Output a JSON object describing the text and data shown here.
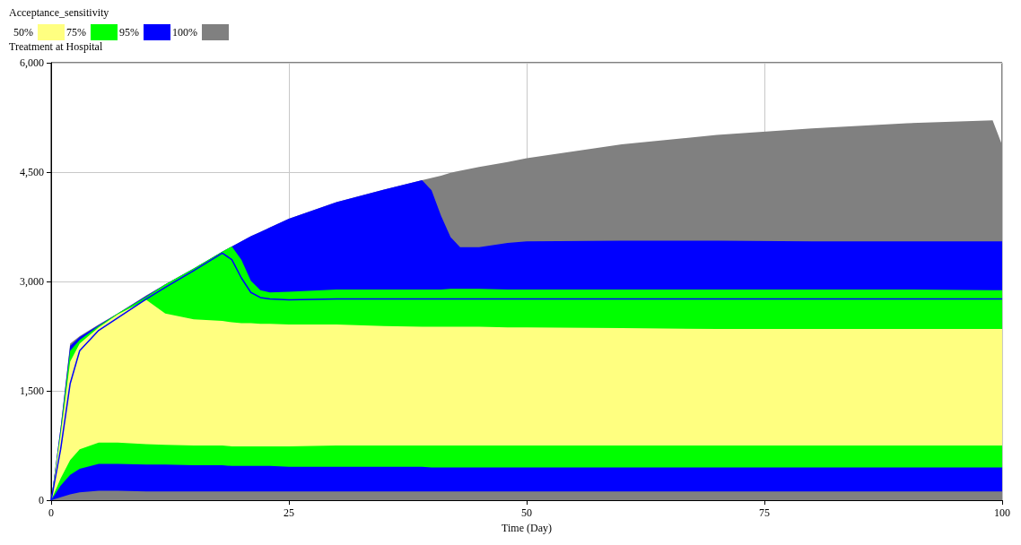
{
  "chart_data": {
    "type": "area",
    "stacked": true,
    "legend_title": "Acceptance_sensitivity",
    "ylabel": "Treatment at Hospital",
    "xlabel": "Time (Day)",
    "legend": "top left",
    "grid": true,
    "xlim": [
      0,
      100
    ],
    "xticks": [
      0,
      25,
      50,
      75,
      100
    ],
    "ylim": [
      0,
      6000
    ],
    "yticks": [
      0,
      {
        "value": 1500,
        "label": "1,500"
      },
      {
        "value": 3000,
        "label": "3,000"
      },
      {
        "value": 4500,
        "label": "4,500"
      },
      {
        "value": 6000,
        "label": "6,000"
      }
    ],
    "x": [
      0,
      1,
      2,
      3,
      5,
      7,
      10,
      12,
      15,
      18,
      19,
      20,
      21,
      22,
      23,
      25,
      30,
      35,
      39,
      40,
      41,
      42,
      43,
      45,
      48,
      50,
      60,
      70,
      80,
      90,
      99,
      100
    ],
    "series": [
      {
        "color": "#808080",
        "values": [
          0,
          40,
          80,
          110,
          130,
          130,
          120,
          120,
          120,
          120,
          120,
          120,
          120,
          120,
          120,
          120,
          120,
          120,
          120,
          120,
          120,
          120,
          120,
          120,
          120,
          120,
          120,
          120,
          120,
          120,
          120,
          120
        ]
      },
      {
        "color": "#0000ff",
        "values": [
          0,
          160,
          270,
          320,
          370,
          370,
          370,
          370,
          360,
          360,
          350,
          350,
          350,
          350,
          350,
          340,
          340,
          340,
          340,
          330,
          330,
          330,
          330,
          330,
          330,
          330,
          330,
          330,
          330,
          330,
          330,
          330
        ]
      },
      {
        "color": "#00ff00",
        "values": [
          0,
          100,
          200,
          270,
          290,
          290,
          280,
          270,
          270,
          270,
          270,
          270,
          270,
          270,
          270,
          280,
          290,
          290,
          290,
          300,
          300,
          300,
          300,
          300,
          300,
          300,
          300,
          300,
          300,
          300,
          300,
          300
        ]
      },
      {
        "name": "50%",
        "color": "#ffff80",
        "values": [
          0,
          600,
          1350,
          1450,
          1580,
          1760,
          1980,
          1800,
          1730,
          1710,
          1700,
          1690,
          1690,
          1680,
          1680,
          1670,
          1660,
          1640,
          1630,
          1630,
          1630,
          1630,
          1630,
          1630,
          1620,
          1620,
          1610,
          1600,
          1600,
          1600,
          1600,
          1600
        ]
      },
      {
        "name": "75%",
        "color": "#00ff00",
        "values": [
          0,
          50,
          150,
          50,
          20,
          10,
          40,
          400,
          700,
          950,
          1040,
          870,
          580,
          460,
          430,
          450,
          480,
          500,
          510,
          510,
          510,
          520,
          520,
          520,
          520,
          520,
          530,
          540,
          540,
          540,
          530,
          530
        ]
      },
      {
        "name": "95%",
        "color": "#0000ff",
        "values": [
          0,
          50,
          70,
          40,
          10,
          0,
          10,
          0,
          0,
          0,
          0,
          250,
          610,
          800,
          890,
          1000,
          1200,
          1370,
          1500,
          1360,
          1010,
          710,
          570,
          570,
          640,
          660,
          670,
          670,
          660,
          660,
          670,
          670
        ]
      },
      {
        "name": "100%",
        "color": "#808080",
        "values": [
          0,
          0,
          30,
          10,
          10,
          0,
          10,
          0,
          0,
          0,
          0,
          0,
          0,
          0,
          0,
          0,
          0,
          0,
          0,
          170,
          550,
          880,
          1050,
          1100,
          1110,
          1140,
          1320,
          1450,
          1550,
          1620,
          1660,
          1320
        ]
      },
      {
        "type": "line",
        "color": "#0000ff",
        "values": [
          0,
          700,
          1600,
          2050,
          2330,
          2500,
          2760,
          2920,
          3150,
          3390,
          3300,
          3050,
          2850,
          2780,
          2760,
          2750,
          2760,
          2760,
          2760,
          2760,
          2760,
          2760,
          2760,
          2760,
          2760,
          2760,
          2760,
          2760,
          2760,
          2760,
          2760,
          2760
        ]
      }
    ]
  }
}
